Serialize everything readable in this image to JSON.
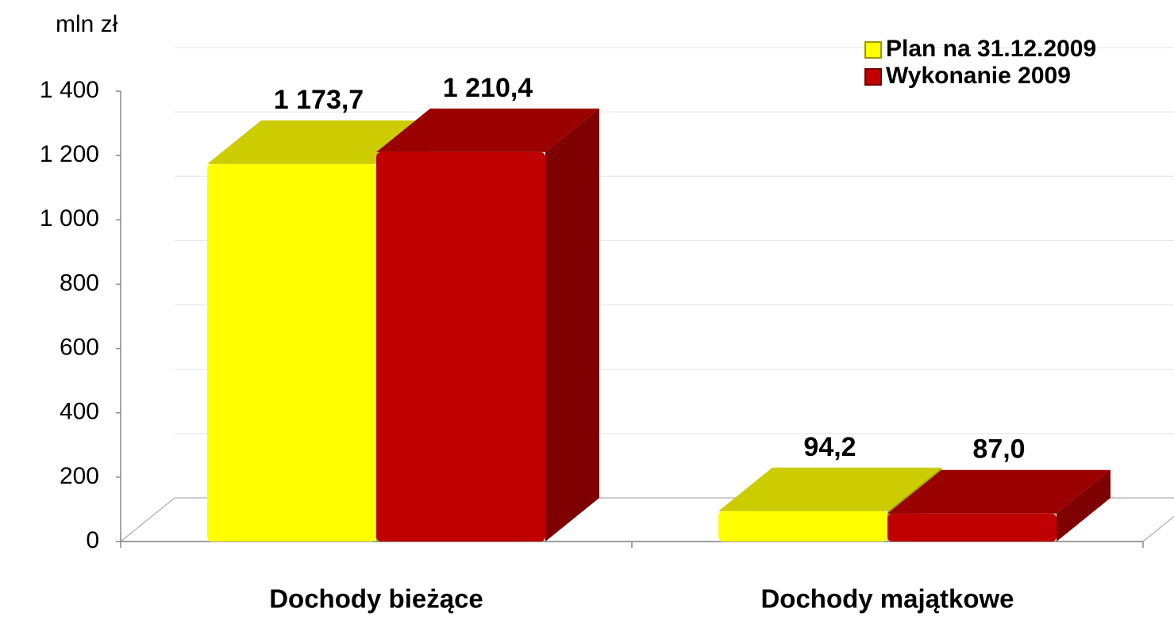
{
  "chart_data": {
    "type": "bar3d",
    "y_axis_label": "mln zł",
    "categories": [
      "Dochody bieżące",
      "Dochody majątkowe"
    ],
    "series": [
      {
        "name": "Plan na 31.12.2009",
        "color": "#ffff00",
        "values": [
          1173.7,
          94.2
        ],
        "value_labels": [
          "1 173,7",
          "94,2"
        ]
      },
      {
        "name": "Wykonanie 2009",
        "color": "#c00000",
        "values": [
          1210.4,
          87.0
        ],
        "value_labels": [
          "1 210,4",
          "87,0"
        ]
      }
    ],
    "ylim": [
      0,
      1400
    ],
    "yticks": [
      0,
      200,
      400,
      600,
      800,
      {
        "value": 1000,
        "label": "1 000"
      },
      {
        "value": 1200,
        "label": "1 200"
      },
      {
        "value": 1400,
        "label": "1 400"
      }
    ],
    "grid": true,
    "legend": "top-right"
  }
}
